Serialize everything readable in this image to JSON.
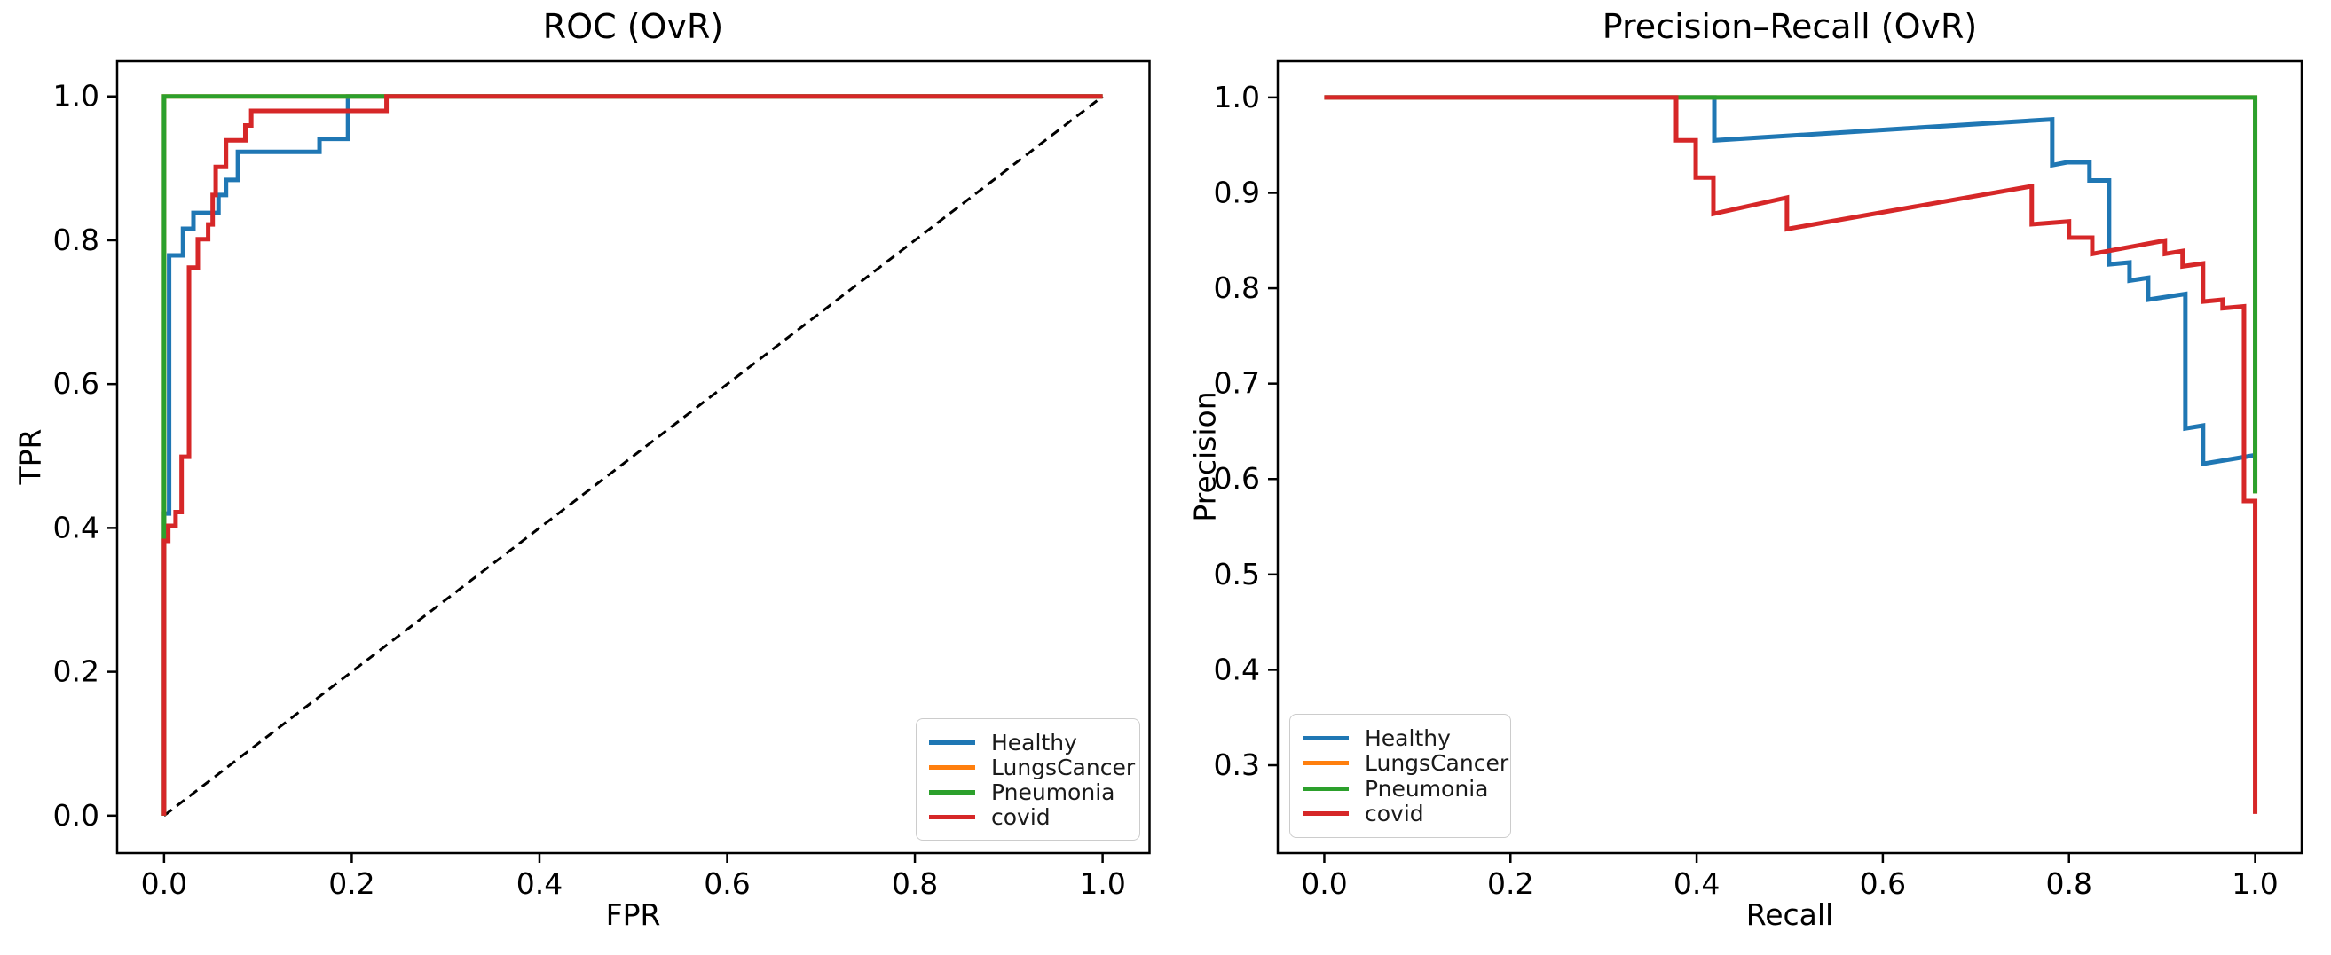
{
  "figure": {
    "background": "#ffffff",
    "left_title": "ROC (OvR)",
    "right_title": "Precision–Recall (OvR)"
  },
  "chart_data": [
    {
      "id": "roc",
      "type": "line",
      "title": "ROC (OvR)",
      "xlabel": "FPR",
      "ylabel": "TPR",
      "xlim": [
        -0.05,
        1.05
      ],
      "ylim": [
        -0.052,
        1.049
      ],
      "xticks": [
        0.0,
        0.2,
        0.4,
        0.6,
        0.8,
        1.0
      ],
      "yticks": [
        0.0,
        0.2,
        0.4,
        0.6,
        0.8,
        1.0
      ],
      "grid": false,
      "legend_position": "lower right",
      "reference_line": {
        "style": "dashed",
        "color": "#000000",
        "points": [
          [
            0,
            0
          ],
          [
            1,
            1
          ]
        ]
      },
      "series": [
        {
          "name": "Healthy",
          "color": "#1f77b4",
          "points": [
            [
              0,
              0
            ],
            [
              0,
              0.42
            ],
            [
              0.0054,
              0.42
            ],
            [
              0.0054,
              0.779
            ],
            [
              0.0202,
              0.779
            ],
            [
              0.0202,
              0.816
            ],
            [
              0.0313,
              0.816
            ],
            [
              0.0313,
              0.838
            ],
            [
              0.058,
              0.838
            ],
            [
              0.058,
              0.863
            ],
            [
              0.066,
              0.863
            ],
            [
              0.066,
              0.884
            ],
            [
              0.0787,
              0.884
            ],
            [
              0.0787,
              0.923
            ],
            [
              0.1656,
              0.923
            ],
            [
              0.1656,
              0.941
            ],
            [
              0.196,
              0.941
            ],
            [
              0.196,
              1.0
            ],
            [
              1.0,
              1.0
            ]
          ]
        },
        {
          "name": "LungsCancer",
          "color": "#ff7f0e",
          "points": [
            [
              0,
              0
            ],
            [
              0,
              1.0
            ],
            [
              1.0,
              1.0
            ]
          ]
        },
        {
          "name": "Pneumonia",
          "color": "#2ca02c",
          "points": [
            [
              0,
              0
            ],
            [
              0,
              1.0
            ],
            [
              1.0,
              1.0
            ]
          ]
        },
        {
          "name": "covid",
          "color": "#d62728",
          "points": [
            [
              0,
              0
            ],
            [
              0,
              0.382
            ],
            [
              0.0045,
              0.382
            ],
            [
              0.0045,
              0.403
            ],
            [
              0.0123,
              0.403
            ],
            [
              0.0123,
              0.422
            ],
            [
              0.0187,
              0.422
            ],
            [
              0.0187,
              0.499
            ],
            [
              0.0266,
              0.499
            ],
            [
              0.0266,
              0.762
            ],
            [
              0.036,
              0.762
            ],
            [
              0.036,
              0.8015
            ],
            [
              0.047,
              0.8015
            ],
            [
              0.047,
              0.822
            ],
            [
              0.0518,
              0.822
            ],
            [
              0.0518,
              0.863
            ],
            [
              0.055,
              0.863
            ],
            [
              0.055,
              0.902
            ],
            [
              0.066,
              0.902
            ],
            [
              0.066,
              0.939
            ],
            [
              0.0866,
              0.939
            ],
            [
              0.0866,
              0.9596
            ],
            [
              0.0929,
              0.9596
            ],
            [
              0.0929,
              0.98
            ],
            [
              0.237,
              0.98
            ],
            [
              0.237,
              1.0
            ],
            [
              1.0,
              1.0
            ]
          ]
        }
      ]
    },
    {
      "id": "pr",
      "type": "line",
      "title": "Precision–Recall (OvR)",
      "xlabel": "Recall",
      "ylabel": "Precision",
      "xlim": [
        -0.05,
        1.05
      ],
      "ylim": [
        0.208,
        1.038
      ],
      "xticks": [
        0.0,
        0.2,
        0.4,
        0.6,
        0.8,
        1.0
      ],
      "yticks": [
        0.3,
        0.4,
        0.5,
        0.6,
        0.7,
        0.8,
        0.9,
        1.0
      ],
      "grid": false,
      "legend_position": "lower left",
      "series": [
        {
          "name": "Healthy",
          "color": "#1f77b4",
          "points": [
            [
              0,
              1.0
            ],
            [
              0.419,
              1.0
            ],
            [
              0.419,
              0.955
            ],
            [
              0.782,
              0.977
            ],
            [
              0.782,
              0.929
            ],
            [
              0.798,
              0.932
            ],
            [
              0.822,
              0.932
            ],
            [
              0.822,
              0.913
            ],
            [
              0.843,
              0.913
            ],
            [
              0.843,
              0.825
            ],
            [
              0.865,
              0.827
            ],
            [
              0.865,
              0.808
            ],
            [
              0.885,
              0.811
            ],
            [
              0.885,
              0.788
            ],
            [
              0.925,
              0.794
            ],
            [
              0.925,
              0.653
            ],
            [
              0.944,
              0.656
            ],
            [
              0.944,
              0.616
            ],
            [
              1.0,
              0.625
            ]
          ]
        },
        {
          "name": "LungsCancer",
          "color": "#ff7f0e",
          "points": [
            [
              0,
              1.0
            ],
            [
              1.0,
              1.0
            ],
            [
              1.0,
              0.585
            ]
          ]
        },
        {
          "name": "Pneumonia",
          "color": "#2ca02c",
          "points": [
            [
              0,
              1.0
            ],
            [
              1.0,
              1.0
            ],
            [
              1.0,
              0.585
            ]
          ]
        },
        {
          "name": "covid",
          "color": "#d62728",
          "points": [
            [
              0,
              1.0
            ],
            [
              0.378,
              1.0
            ],
            [
              0.378,
              0.955
            ],
            [
              0.399,
              0.955
            ],
            [
              0.399,
              0.916
            ],
            [
              0.418,
              0.916
            ],
            [
              0.418,
              0.878
            ],
            [
              0.497,
              0.895
            ],
            [
              0.497,
              0.862
            ],
            [
              0.76,
              0.907
            ],
            [
              0.76,
              0.867
            ],
            [
              0.8,
              0.87
            ],
            [
              0.8,
              0.853
            ],
            [
              0.825,
              0.853
            ],
            [
              0.825,
              0.836
            ],
            [
              0.903,
              0.85
            ],
            [
              0.903,
              0.836
            ],
            [
              0.922,
              0.839
            ],
            [
              0.922,
              0.823
            ],
            [
              0.944,
              0.826
            ],
            [
              0.944,
              0.786
            ],
            [
              0.965,
              0.788
            ],
            [
              0.965,
              0.779
            ],
            [
              0.988,
              0.781
            ],
            [
              0.988,
              0.577
            ],
            [
              1.0,
              0.577
            ],
            [
              1.0,
              0.249
            ]
          ]
        }
      ]
    }
  ]
}
